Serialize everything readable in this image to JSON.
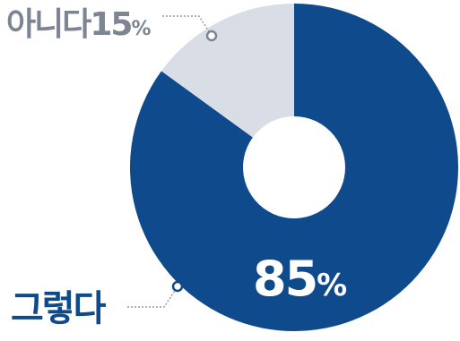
{
  "chart_data": {
    "type": "pie",
    "style": "donut",
    "slices": [
      {
        "name": "그렇다",
        "value": 85,
        "value_label": "85",
        "unit": "%",
        "color": "#0e4a8c"
      },
      {
        "name": "아니다",
        "value": 15,
        "value_label": "15",
        "unit": "%",
        "color": "#d8dde6"
      }
    ],
    "label_colors": {
      "yes_name": "#0e4a8c",
      "no_label": "#7d8595",
      "inner_value": "#ffffff",
      "leader": "#7d8595"
    }
  }
}
